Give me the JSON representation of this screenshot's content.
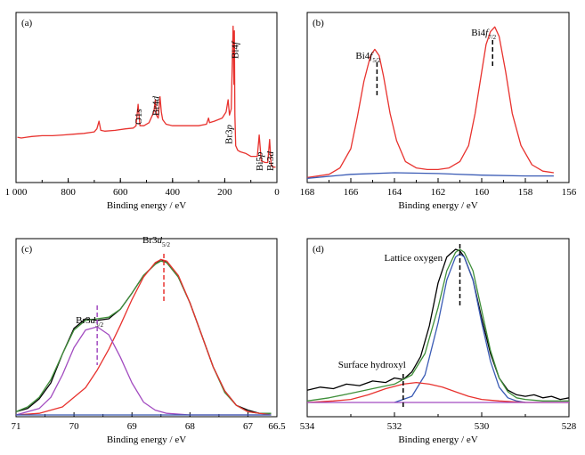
{
  "chart_data": [
    {
      "panel": "(a)",
      "type": "line",
      "xlabel": "Binding energy / eV",
      "ylabel": "",
      "xlim": [
        1000,
        0
      ],
      "ticks": [
        "1 000",
        "800",
        "600",
        "400",
        "200",
        "0"
      ],
      "tick_values": [
        1000,
        800,
        600,
        400,
        200,
        0
      ],
      "series": [
        {
          "color": "#e8322e",
          "x": [
            995,
            980,
            960,
            940,
            900,
            860,
            820,
            780,
            740,
            700,
            690,
            682,
            675,
            660,
            620,
            580,
            550,
            540,
            532,
            525,
            510,
            490,
            472,
            466,
            462,
            455,
            448,
            443,
            438,
            425,
            400,
            370,
            340,
            300,
            270,
            262,
            258,
            240,
            210,
            195,
            187,
            182,
            175,
            168,
            165,
            163,
            161,
            158,
            150,
            140,
            120,
            100,
            85,
            75,
            68,
            60,
            45,
            35,
            28,
            22,
            15,
            5
          ],
          "y": [
            0.255,
            0.25,
            0.255,
            0.26,
            0.265,
            0.265,
            0.27,
            0.275,
            0.28,
            0.29,
            0.31,
            0.36,
            0.3,
            0.295,
            0.3,
            0.31,
            0.315,
            0.33,
            0.47,
            0.33,
            0.33,
            0.35,
            0.42,
            0.5,
            0.4,
            0.38,
            0.52,
            0.42,
            0.37,
            0.34,
            0.33,
            0.33,
            0.33,
            0.33,
            0.34,
            0.38,
            0.35,
            0.36,
            0.38,
            0.42,
            0.5,
            0.4,
            0.44,
            0.98,
            0.6,
            0.95,
            0.4,
            0.2,
            0.17,
            0.16,
            0.15,
            0.13,
            0.13,
            0.13,
            0.27,
            0.1,
            0.09,
            0.09,
            0.24,
            0.07,
            0.06,
            0.06
          ]
        }
      ],
      "annotations": [
        {
          "text": "O1",
          "italic": "s",
          "x": 532
        },
        {
          "text": "Br4",
          "italic": "d",
          "x": 466
        },
        {
          "text": "Br3",
          "italic": "p",
          "x": 186
        },
        {
          "text": "Bi4",
          "italic": "f",
          "x": 162
        },
        {
          "text": "Bi5",
          "italic": "p",
          "x": 68
        },
        {
          "text": "Br3",
          "italic": "d",
          "x": 28
        }
      ]
    },
    {
      "panel": "(b)",
      "type": "line",
      "xlabel": "Binding energy / eV",
      "ylabel": "",
      "xlim": [
        168,
        156
      ],
      "ticks": [
        "168",
        "166",
        "164",
        "162",
        "160",
        "158",
        "156"
      ],
      "tick_values": [
        168,
        166,
        164,
        162,
        160,
        158,
        156
      ],
      "series": [
        {
          "color": "#e8322e",
          "x": [
            168,
            167,
            166.5,
            166,
            165.7,
            165.4,
            165.1,
            164.9,
            164.7,
            164.5,
            164.2,
            163.9,
            163.5,
            163,
            162.5,
            162,
            161.5,
            161,
            160.6,
            160.3,
            160,
            159.8,
            159.6,
            159.4,
            159.2,
            158.9,
            158.6,
            158.2,
            157.7,
            157.2,
            156.7
          ],
          "y": [
            0.02,
            0.04,
            0.08,
            0.2,
            0.4,
            0.62,
            0.78,
            0.82,
            0.78,
            0.65,
            0.42,
            0.25,
            0.12,
            0.08,
            0.07,
            0.07,
            0.08,
            0.12,
            0.22,
            0.42,
            0.68,
            0.85,
            0.93,
            0.96,
            0.9,
            0.68,
            0.42,
            0.22,
            0.1,
            0.06,
            0.05
          ]
        },
        {
          "color": "#3a5bb5",
          "x": [
            168,
            166,
            164,
            162,
            160,
            158,
            156.7
          ],
          "y": [
            0.015,
            0.04,
            0.05,
            0.045,
            0.035,
            0.03,
            0.03
          ]
        }
      ],
      "annotations": [
        {
          "text": "Bi4",
          "italic": "f",
          "sub": "5/2",
          "x": 164.8
        },
        {
          "text": "Bi4",
          "italic": "f",
          "sub": "7/2",
          "x": 159.5
        }
      ]
    },
    {
      "panel": "(c)",
      "type": "line",
      "xlabel": "Binding energy / eV",
      "ylabel": "",
      "xlim": [
        71,
        66.5
      ],
      "ticks": [
        "71",
        "70",
        "69",
        "68",
        "67",
        "66.5"
      ],
      "tick_values": [
        71,
        70,
        69,
        68,
        67,
        66.5
      ],
      "series": [
        {
          "color": "#000000",
          "x": [
            71,
            70.8,
            70.6,
            70.4,
            70.2,
            70.0,
            69.8,
            69.6,
            69.4,
            69.2,
            69.0,
            68.8,
            68.6,
            68.5,
            68.4,
            68.2,
            68.0,
            67.8,
            67.6,
            67.4,
            67.2,
            67.0,
            66.8,
            66.6
          ],
          "y": [
            0.02,
            0.04,
            0.1,
            0.2,
            0.38,
            0.54,
            0.6,
            0.59,
            0.6,
            0.66,
            0.76,
            0.87,
            0.94,
            0.97,
            0.95,
            0.86,
            0.7,
            0.5,
            0.3,
            0.15,
            0.06,
            0.03,
            0.01,
            0.01
          ]
        },
        {
          "color": "#3f8f3a",
          "x": [
            71,
            70.8,
            70.6,
            70.4,
            70.2,
            70.0,
            69.8,
            69.6,
            69.4,
            69.2,
            69.0,
            68.8,
            68.6,
            68.5,
            68.4,
            68.2,
            68.0,
            67.8,
            67.6,
            67.4,
            67.2,
            67.0,
            66.8,
            66.6
          ],
          "y": [
            0.02,
            0.05,
            0.11,
            0.22,
            0.38,
            0.53,
            0.59,
            0.6,
            0.61,
            0.66,
            0.76,
            0.87,
            0.94,
            0.96,
            0.95,
            0.86,
            0.7,
            0.5,
            0.3,
            0.14,
            0.06,
            0.02,
            0.01,
            0.01
          ]
        },
        {
          "color": "#e8322e",
          "x": [
            71,
            70.6,
            70.2,
            69.8,
            69.6,
            69.4,
            69.2,
            69.0,
            68.8,
            68.6,
            68.5,
            68.4,
            68.2,
            68.0,
            67.8,
            67.6,
            67.4,
            67.2,
            67.0,
            66.6
          ],
          "y": [
            0.0,
            0.01,
            0.05,
            0.17,
            0.28,
            0.41,
            0.56,
            0.72,
            0.86,
            0.95,
            0.97,
            0.96,
            0.87,
            0.7,
            0.5,
            0.3,
            0.15,
            0.06,
            0.02,
            0.0
          ]
        },
        {
          "color": "#a24bc0",
          "x": [
            71,
            70.6,
            70.4,
            70.2,
            70.0,
            69.8,
            69.6,
            69.4,
            69.2,
            69.0,
            68.8,
            68.6,
            68.4,
            68.0,
            66.6
          ],
          "y": [
            0.0,
            0.04,
            0.11,
            0.25,
            0.42,
            0.53,
            0.55,
            0.5,
            0.36,
            0.2,
            0.08,
            0.03,
            0.01,
            0.0,
            0.0
          ]
        },
        {
          "color": "#3a5bb5",
          "x": [
            71,
            66.6
          ],
          "y": [
            0.0,
            0.0
          ]
        }
      ],
      "annotations": [
        {
          "text": "Br3",
          "italic": "d",
          "sub": "3/2",
          "x": 69.6
        },
        {
          "text": "Br3",
          "italic": "d",
          "sub": "5/2",
          "x": 68.45
        }
      ]
    },
    {
      "panel": "(d)",
      "type": "line",
      "xlabel": "Binding energy / eV",
      "ylabel": "",
      "xlim": [
        534,
        528
      ],
      "ticks": [
        "534",
        "532",
        "530",
        "528"
      ],
      "tick_values": [
        534,
        532,
        530,
        528
      ],
      "series": [
        {
          "color": "#000000",
          "x": [
            534,
            533.7,
            533.4,
            533.1,
            532.8,
            532.5,
            532.2,
            532.0,
            531.8,
            531.6,
            531.4,
            531.2,
            531.0,
            530.8,
            530.6,
            530.5,
            530.4,
            530.2,
            530.0,
            529.8,
            529.6,
            529.4,
            529.2,
            529.0,
            528.8,
            528.6,
            528.4,
            528.2,
            528.0
          ],
          "y": [
            0.08,
            0.1,
            0.09,
            0.12,
            0.11,
            0.14,
            0.13,
            0.16,
            0.15,
            0.2,
            0.3,
            0.5,
            0.78,
            0.95,
            1.0,
            0.99,
            0.95,
            0.8,
            0.55,
            0.32,
            0.16,
            0.08,
            0.05,
            0.04,
            0.05,
            0.03,
            0.04,
            0.02,
            0.03
          ]
        },
        {
          "color": "#3f8f3a",
          "x": [
            534,
            533.5,
            533,
            532.5,
            532,
            531.6,
            531.3,
            531.0,
            530.8,
            530.6,
            530.5,
            530.4,
            530.2,
            530.0,
            529.8,
            529.6,
            529.4,
            529.2,
            529.0,
            528.6,
            528.0
          ],
          "y": [
            0.01,
            0.03,
            0.06,
            0.09,
            0.12,
            0.18,
            0.32,
            0.62,
            0.86,
            0.98,
            1.0,
            0.98,
            0.86,
            0.6,
            0.34,
            0.16,
            0.07,
            0.03,
            0.02,
            0.01,
            0.01
          ]
        },
        {
          "color": "#3a5bb5",
          "x": [
            532.0,
            531.6,
            531.3,
            531.0,
            530.8,
            530.6,
            530.5,
            530.4,
            530.2,
            530.0,
            529.8,
            529.6,
            529.4,
            529.2,
            529.0
          ],
          "y": [
            0.0,
            0.04,
            0.18,
            0.52,
            0.8,
            0.95,
            0.97,
            0.95,
            0.8,
            0.52,
            0.27,
            0.1,
            0.03,
            0.01,
            0.0
          ]
        },
        {
          "color": "#e8322e",
          "x": [
            534,
            533.4,
            533.0,
            532.6,
            532.2,
            531.8,
            531.5,
            531.2,
            530.9,
            530.6,
            530.3,
            530.0,
            529.6,
            529.0,
            528.0
          ],
          "y": [
            0.0,
            0.01,
            0.02,
            0.05,
            0.09,
            0.12,
            0.13,
            0.12,
            0.1,
            0.07,
            0.04,
            0.02,
            0.01,
            0.0,
            0.0
          ]
        },
        {
          "color": "#a24bc0",
          "x": [
            534,
            528
          ],
          "y": [
            0.0,
            0.0
          ]
        }
      ],
      "annotations": [
        {
          "text": "Lattice oxygen",
          "x": 530.5
        },
        {
          "text": "Surface hydroxyl",
          "x": 531.8
        }
      ]
    }
  ]
}
